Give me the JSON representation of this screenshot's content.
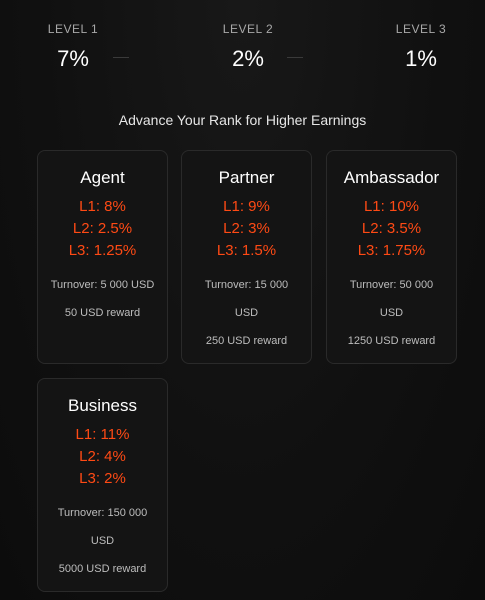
{
  "levels": [
    {
      "label": "LEVEL 1",
      "value": "7%"
    },
    {
      "label": "LEVEL 2",
      "value": "2%"
    },
    {
      "label": "LEVEL 3",
      "value": "1%"
    }
  ],
  "subtitle": "Advance Your Rank for Higher Earnings",
  "ranks": [
    {
      "name": "Agent",
      "l1": "L1: 8%",
      "l2": "L2: 2.5%",
      "l3": "L3: 1.25%",
      "turnover": "Turnover: 5 000 USD",
      "reward": "50 USD reward"
    },
    {
      "name": "Partner",
      "l1": "L1: 9%",
      "l2": "L2: 3%",
      "l3": "L3: 1.5%",
      "turnover": "Turnover: 15 000 USD",
      "reward": "250 USD reward"
    },
    {
      "name": "Ambassador",
      "l1": "L1: 10%",
      "l2": "L2: 3.5%",
      "l3": "L3: 1.75%",
      "turnover": "Turnover: 50 000 USD",
      "reward": "1250 USD reward"
    },
    {
      "name": "Business",
      "l1": "L1: 11%",
      "l2": "L2: 4%",
      "l3": "L3: 2%",
      "turnover": "Turnover: 150 000 USD",
      "reward": "5000 USD reward"
    }
  ],
  "colors": {
    "accent": "#ff4a14",
    "background": "#101010",
    "card_border": "#2a2a2a"
  }
}
